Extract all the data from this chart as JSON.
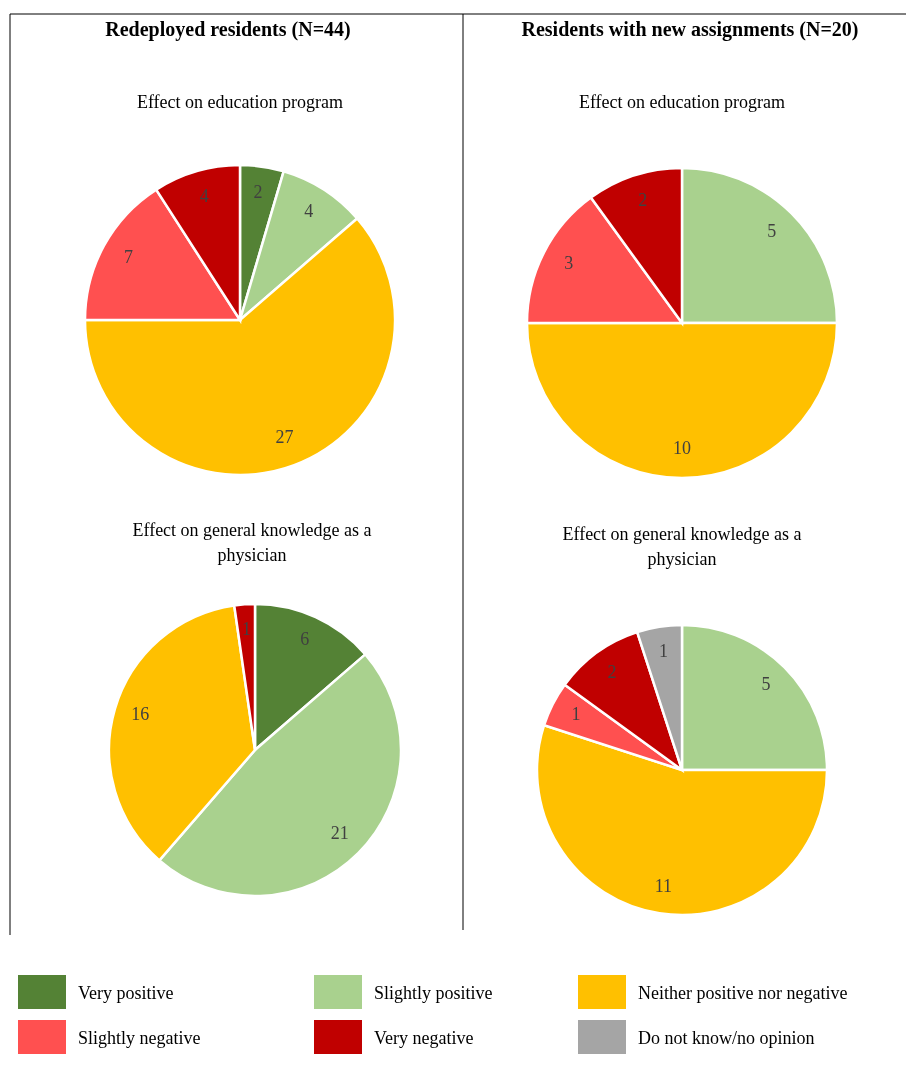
{
  "chart_data": [
    {
      "type": "pie",
      "title": "Redeployed residents (N=44)",
      "subtitle": "Effect on education program",
      "categories": [
        "Very positive",
        "Slightly positive",
        "Neither positive nor negative",
        "Slightly negative",
        "Very negative",
        "Do not know/no opinion"
      ],
      "values": [
        2,
        4,
        27,
        7,
        4,
        null
      ],
      "colors": [
        "#548235",
        "#a9d18e",
        "#ffc000",
        "#ff5050",
        "#c00000",
        "#a5a5a5"
      ],
      "data_labels": true,
      "legend": "bottom"
    },
    {
      "type": "pie",
      "title": "Residents with new assignments (N=20)",
      "subtitle": "Effect on education program",
      "categories": [
        null,
        null,
        null,
        null,
        null,
        null
      ],
      "values": [
        null,
        5,
        10,
        3,
        2,
        null
      ],
      "colors": [
        null,
        "#a9d18e",
        "#ffc000",
        "#ff5050",
        "#c00000",
        null
      ],
      "data_labels": true
    },
    {
      "type": "pie",
      "title": "Effect on general knowledge as a physician",
      "categories": [
        null,
        null,
        null,
        null,
        null,
        null
      ],
      "values": [
        6,
        21,
        16,
        null,
        1,
        null
      ],
      "colors": [
        "#548235",
        "#a9d18e",
        "#ffc000",
        null,
        "#c00000",
        null
      ],
      "data_labels": true
    },
    {
      "type": "pie",
      "title": "Effect on general knowledge as a physician",
      "categories": [
        null,
        null,
        null,
        null,
        null,
        null
      ],
      "values": [
        null,
        5,
        11,
        1,
        2,
        1
      ],
      "colors": [
        null,
        "#a9d18e",
        "#ffc000",
        "#ff5050",
        "#c00000",
        "#a5a5a5"
      ],
      "data_labels": true
    }
  ]
}
